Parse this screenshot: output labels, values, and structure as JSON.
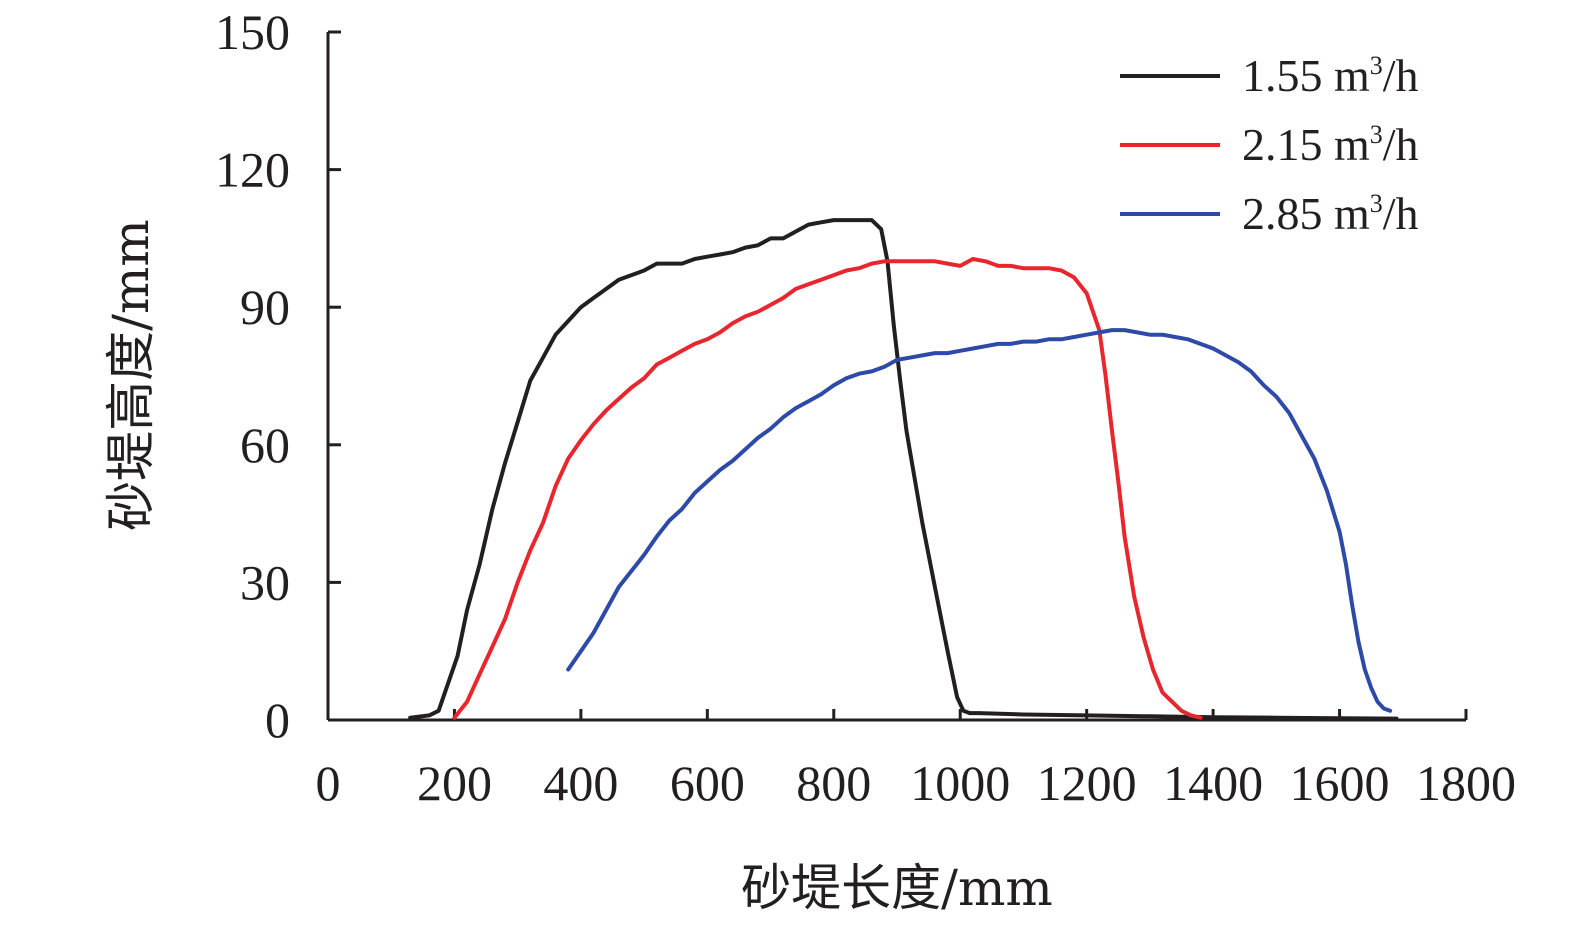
{
  "chart_data": {
    "type": "line",
    "title": "",
    "xlabel": "砂堤长度/mm",
    "ylabel": "砂堤高度/mm",
    "xlim": [
      0,
      1800
    ],
    "ylim": [
      0,
      150
    ],
    "xticks": [
      0,
      200,
      400,
      600,
      800,
      1000,
      1200,
      1400,
      1600,
      1800
    ],
    "yticks": [
      0,
      30,
      60,
      90,
      120,
      150
    ],
    "grid": false,
    "legend_position": "top-right",
    "series": [
      {
        "name": "1.55 m³/h",
        "name_base": "1.55 m",
        "name_sup": "3",
        "name_tail": "/h",
        "color": "#231f20",
        "x": [
          130,
          160,
          175,
          190,
          205,
          220,
          240,
          260,
          280,
          300,
          320,
          340,
          360,
          380,
          400,
          420,
          440,
          460,
          480,
          500,
          520,
          540,
          560,
          580,
          600,
          620,
          640,
          660,
          680,
          700,
          720,
          740,
          760,
          780,
          800,
          820,
          840,
          860,
          875,
          885,
          895,
          905,
          915,
          925,
          940,
          960,
          980,
          995,
          1005,
          1015,
          1030,
          1100,
          1200,
          1300,
          1400,
          1500,
          1600,
          1690
        ],
        "y": [
          0.5,
          1,
          2,
          8,
          14,
          24,
          34,
          46,
          56,
          65,
          74,
          79,
          84,
          87,
          90,
          92,
          94,
          96,
          97,
          98,
          99.5,
          99.5,
          99.5,
          100.5,
          101,
          101.5,
          102,
          103,
          103.5,
          105,
          105,
          106.5,
          108,
          108.5,
          109,
          109,
          109,
          109,
          107,
          100,
          86,
          74,
          63,
          55,
          43,
          29,
          15,
          5,
          2,
          1.5,
          1.5,
          1.2,
          1,
          0.8,
          0.6,
          0.5,
          0.4,
          0.3
        ]
      },
      {
        "name": "2.15 m³/h",
        "name_base": "2.15 m",
        "name_sup": "3",
        "name_tail": "/h",
        "color": "#e8262d",
        "x": [
          200,
          220,
          240,
          260,
          280,
          300,
          320,
          340,
          360,
          380,
          400,
          420,
          440,
          460,
          480,
          500,
          520,
          540,
          560,
          580,
          600,
          620,
          640,
          660,
          680,
          700,
          720,
          740,
          760,
          780,
          800,
          820,
          840,
          860,
          880,
          900,
          920,
          940,
          960,
          980,
          1000,
          1020,
          1040,
          1060,
          1080,
          1100,
          1120,
          1140,
          1160,
          1180,
          1200,
          1220,
          1230,
          1240,
          1250,
          1260,
          1275,
          1290,
          1305,
          1320,
          1335,
          1350,
          1365,
          1380
        ],
        "y": [
          0.5,
          4,
          10,
          16,
          22,
          30,
          37,
          43,
          51,
          57,
          61,
          64.5,
          67.5,
          70,
          72.5,
          74.5,
          77.5,
          79,
          80.5,
          82,
          83,
          84.5,
          86.5,
          88,
          89,
          90.5,
          92,
          94,
          95,
          96,
          97,
          98,
          98.5,
          99.5,
          100,
          100,
          100,
          100,
          100,
          99.5,
          99,
          100.5,
          100,
          99,
          99,
          98.5,
          98.5,
          98.5,
          98,
          96.5,
          93,
          85,
          75,
          63,
          52,
          40,
          27,
          18,
          11,
          6,
          4,
          2,
          1,
          0.5
        ]
      },
      {
        "name": "2.85 m³/h",
        "name_base": "2.85 m",
        "name_sup": "3",
        "name_tail": "/h",
        "color": "#2e4aa8",
        "x": [
          380,
          400,
          420,
          440,
          460,
          480,
          500,
          520,
          540,
          560,
          580,
          600,
          620,
          640,
          660,
          680,
          700,
          720,
          740,
          760,
          780,
          800,
          820,
          840,
          860,
          880,
          900,
          920,
          940,
          960,
          980,
          1000,
          1020,
          1040,
          1060,
          1080,
          1100,
          1120,
          1140,
          1160,
          1180,
          1200,
          1220,
          1240,
          1260,
          1280,
          1300,
          1320,
          1340,
          1360,
          1380,
          1400,
          1420,
          1440,
          1460,
          1480,
          1500,
          1520,
          1540,
          1560,
          1580,
          1600,
          1610,
          1620,
          1630,
          1640,
          1650,
          1660,
          1670,
          1680
        ],
        "y": [
          11,
          15,
          19,
          24,
          29,
          32.5,
          36,
          40,
          43.5,
          46,
          49.5,
          52,
          54.5,
          56.5,
          59,
          61.5,
          63.5,
          66,
          68,
          69.5,
          71,
          73,
          74.5,
          75.5,
          76,
          77,
          78.5,
          79,
          79.5,
          80,
          80,
          80.5,
          81,
          81.5,
          82,
          82,
          82.5,
          82.5,
          83,
          83,
          83.5,
          84,
          84.5,
          85,
          85,
          84.5,
          84,
          84,
          83.5,
          83,
          82,
          81,
          79.5,
          78,
          76,
          73,
          70.5,
          67,
          62,
          57,
          50,
          41,
          34,
          25,
          17,
          11,
          7,
          4,
          2.5,
          2
        ]
      }
    ]
  }
}
